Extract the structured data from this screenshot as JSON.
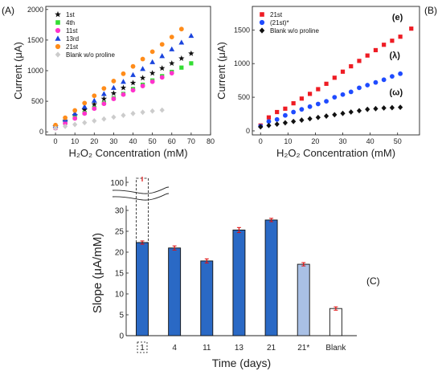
{
  "panels": {
    "a": {
      "label": "(A)"
    },
    "b": {
      "label": "(B)"
    },
    "c": {
      "label": "(C)"
    }
  },
  "chart_data": [
    {
      "type": "scatter",
      "panel": "(A)",
      "xlabel": "H₂O₂ Concentration (mM)",
      "ylabel": "Current (μA)",
      "xlim": [
        -5,
        80
      ],
      "ylim": [
        -50,
        2050
      ],
      "xticks": [
        0,
        10,
        20,
        30,
        40,
        50,
        60,
        70,
        80
      ],
      "yticks": [
        0,
        500,
        1000,
        1500,
        2000
      ],
      "grid": false,
      "legend_position": "top-left",
      "series": [
        {
          "name": "1st",
          "marker": "star",
          "color": "#111111",
          "x": [
            0,
            5,
            10,
            15,
            20,
            25,
            30,
            35,
            40,
            45,
            50,
            55,
            60,
            65,
            70
          ],
          "y": [
            90,
            180,
            270,
            360,
            450,
            540,
            630,
            720,
            800,
            880,
            960,
            1040,
            1120,
            1200,
            1280
          ]
        },
        {
          "name": "4th",
          "marker": "square",
          "color": "#33dd33",
          "x": [
            0,
            5,
            10,
            15,
            20,
            25,
            30,
            35,
            40,
            45,
            50,
            55,
            60,
            65,
            70
          ],
          "y": [
            70,
            150,
            230,
            310,
            390,
            470,
            550,
            620,
            700,
            770,
            840,
            910,
            980,
            1050,
            1120
          ]
        },
        {
          "name": "11st",
          "marker": "circle",
          "color": "#ff33cc",
          "x": [
            0,
            5,
            10,
            15,
            20,
            25,
            30,
            35,
            40,
            45,
            50,
            55,
            60
          ],
          "y": [
            60,
            140,
            220,
            300,
            380,
            460,
            540,
            610,
            680,
            750,
            820,
            890,
            960
          ]
        },
        {
          "name": "13rd",
          "marker": "triangle",
          "color": "#1a44dd",
          "x": [
            0,
            5,
            10,
            15,
            20,
            25,
            30,
            35,
            40,
            45,
            50,
            55,
            60,
            65,
            70
          ],
          "y": [
            100,
            200,
            300,
            410,
            510,
            620,
            720,
            820,
            930,
            1030,
            1140,
            1240,
            1350,
            1460,
            1570
          ]
        },
        {
          "name": "21st",
          "marker": "circle",
          "color": "#ff8c1a",
          "x": [
            0,
            5,
            10,
            15,
            20,
            25,
            30,
            35,
            40,
            45,
            50,
            55,
            60,
            65
          ],
          "y": [
            110,
            230,
            350,
            470,
            590,
            710,
            830,
            950,
            1070,
            1190,
            1310,
            1430,
            1550,
            1680
          ]
        },
        {
          "name": "Blank w/o proline",
          "marker": "diamond",
          "color": "#cccccc",
          "x": [
            0,
            5,
            10,
            15,
            20,
            25,
            30,
            35,
            40,
            45,
            50,
            55
          ],
          "y": [
            60,
            90,
            120,
            150,
            180,
            210,
            240,
            270,
            300,
            320,
            340,
            355
          ]
        }
      ]
    },
    {
      "type": "scatter",
      "panel": "(B)",
      "xlabel": "H₂O₂ Concentration (mM)",
      "ylabel": "Current (μA)",
      "xlim": [
        -3,
        58
      ],
      "ylim": [
        -60,
        1850
      ],
      "xticks": [
        0,
        10,
        20,
        30,
        40,
        50
      ],
      "yticks": [
        0,
        500,
        1000,
        1500
      ],
      "grid": false,
      "legend_position": "top-left",
      "annotations": [
        "(e)",
        "(λ)",
        "(ω)"
      ],
      "series": [
        {
          "name": "21st",
          "marker": "square",
          "color": "#ee1c24",
          "x": [
            0,
            3,
            6,
            9,
            12,
            15,
            18,
            21,
            24,
            27,
            30,
            33,
            36,
            39,
            42,
            45,
            48,
            51,
            55
          ],
          "y": [
            80,
            200,
            280,
            330,
            410,
            480,
            550,
            620,
            700,
            790,
            880,
            960,
            1040,
            1120,
            1200,
            1280,
            1340,
            1400,
            1520
          ]
        },
        {
          "name": "(21st)*",
          "marker": "circle",
          "color": "#1f4bff",
          "x": [
            0,
            3,
            6,
            9,
            12,
            15,
            18,
            21,
            24,
            27,
            30,
            33,
            36,
            39,
            42,
            45,
            48,
            51
          ],
          "y": [
            70,
            140,
            170,
            230,
            280,
            320,
            360,
            400,
            440,
            500,
            540,
            580,
            640,
            680,
            720,
            760,
            810,
            850
          ]
        },
        {
          "name": "Blank w/o proline",
          "marker": "diamond",
          "color": "#111111",
          "x": [
            0,
            3,
            6,
            9,
            12,
            15,
            18,
            21,
            24,
            27,
            30,
            33,
            36,
            39,
            42,
            45,
            48,
            51
          ],
          "y": [
            60,
            80,
            100,
            120,
            140,
            160,
            180,
            200,
            220,
            240,
            260,
            280,
            300,
            320,
            330,
            340,
            345,
            350
          ]
        }
      ]
    },
    {
      "type": "bar",
      "panel": "(C)",
      "xlabel": "Time (days)",
      "ylabel": "Slope (μA/mM)",
      "ylim": [
        0,
        30
      ],
      "yticks": [
        0,
        5,
        10,
        15,
        20,
        25,
        30
      ],
      "axis_break": {
        "upper_tick": 100
      },
      "categories": [
        "1",
        "4",
        "11",
        "13",
        "21",
        "21*",
        "Blank"
      ],
      "values": [
        22.3,
        21.0,
        17.9,
        25.3,
        27.7,
        17.1,
        6.5
      ],
      "errors": [
        0.4,
        0.5,
        0.5,
        0.6,
        0.4,
        0.4,
        0.4
      ],
      "first_bar_extended_value": 102,
      "colors": [
        "#2a69c5",
        "#2a69c5",
        "#2a69c5",
        "#2a69c5",
        "#2a69c5",
        "#a9c0e5",
        "#ffffff"
      ]
    }
  ]
}
